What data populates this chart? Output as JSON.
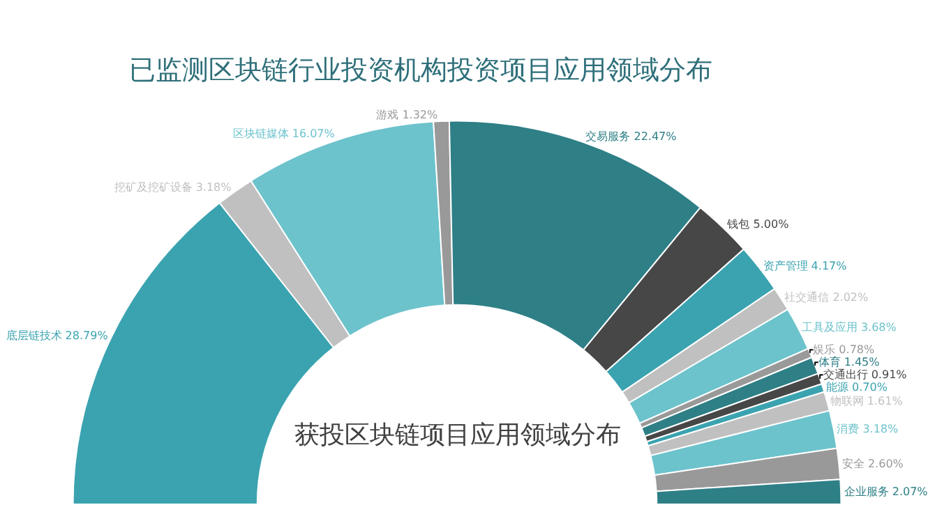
{
  "chart_data": {
    "type": "donut",
    "title": "已监测区块链行业投资机构投资项目应用领域分布",
    "annotations": [
      "获投区块链项目应用领域分布"
    ],
    "categories": [
      "底层链技术",
      "挖矿及挖矿设备",
      "区块链媒体",
      "游戏",
      "交易服务",
      "钱包",
      "资产管理",
      "社交通信",
      "工具及应用",
      "娱乐",
      "体育",
      "交通出行",
      "能源",
      "物联网",
      "消费",
      "安全",
      "企业服务"
    ],
    "values": [
      28.79,
      3.18,
      16.07,
      1.32,
      22.47,
      5.0,
      4.17,
      2.02,
      3.68,
      0.78,
      1.45,
      0.91,
      0.7,
      1.61,
      3.18,
      2.6,
      2.07
    ],
    "value_labels": [
      "28.79%",
      "3.18%",
      "16.07%",
      "1.32%",
      "22.47%",
      "5.00%",
      "4.17%",
      "2.02%",
      "3.68%",
      "0.78%",
      "1.45%",
      "0.91%",
      "0.70%",
      "1.61%",
      "3.18%",
      "2.60%",
      "2.07%"
    ],
    "colors": [
      "#3ba3b0",
      "#c0c0c0",
      "#6cc3cc",
      "#999999",
      "#2e7f86",
      "#474747",
      "#3ba3b0",
      "#c0c0c0",
      "#6cc3cc",
      "#999999",
      "#2e7f86",
      "#474747",
      "#3ba3b0",
      "#c0c0c0",
      "#6cc3cc",
      "#999999",
      "#2e7f86"
    ],
    "legend": false
  }
}
